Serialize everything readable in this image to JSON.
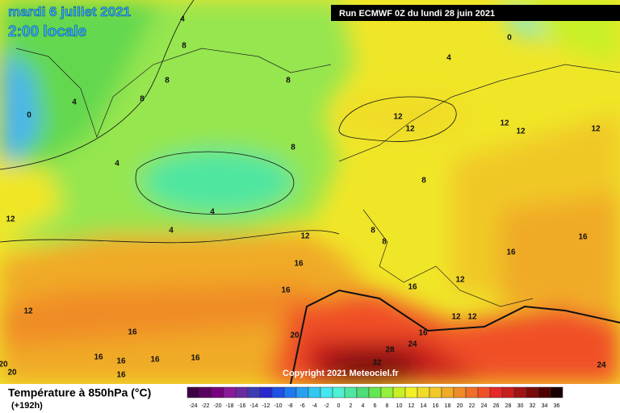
{
  "header": {
    "date": "mardi 6 juillet 2021",
    "time": "2:00 locale",
    "run": "Run ECMWF 0Z du lundi 28 juin 2021"
  },
  "copyright": "Copyright 2021 Meteociel.fr",
  "contour_labels": [
    4,
    8,
    8,
    8,
    4,
    0,
    4,
    4,
    4,
    12,
    8,
    8,
    12,
    12,
    12,
    12,
    12,
    0,
    4,
    8,
    8,
    8,
    12,
    16,
    16,
    16,
    16,
    12,
    16,
    12,
    12,
    12,
    16,
    20,
    16,
    24,
    28,
    32,
    16,
    16,
    16,
    16,
    20,
    20,
    16,
    24
  ],
  "legend": {
    "title": "Température à 850hPa (°C)",
    "subtitle": "(+192h)",
    "ticks": [
      -24,
      -22,
      -20,
      -18,
      -16,
      -14,
      -12,
      -10,
      -8,
      -6,
      -4,
      -2,
      0,
      2,
      4,
      6,
      8,
      10,
      12,
      14,
      16,
      18,
      20,
      22,
      24,
      26,
      28,
      30,
      32,
      34,
      36
    ],
    "colors": [
      "#3d0044",
      "#5a0060",
      "#770080",
      "#8a1a9a",
      "#6a2aa0",
      "#3c3cb4",
      "#2828d2",
      "#1e50e6",
      "#1e78f0",
      "#28a0f0",
      "#32c8f0",
      "#46e6f0",
      "#50f0d2",
      "#50e6a0",
      "#50dc78",
      "#64e650",
      "#96f03c",
      "#c8f028",
      "#f0f028",
      "#f0dc28",
      "#f0c828",
      "#f0aa28",
      "#f08c28",
      "#f06e28",
      "#f05028",
      "#e62828",
      "#c81e1e",
      "#a01414",
      "#780a0a",
      "#500000",
      "#1a0000"
    ]
  }
}
